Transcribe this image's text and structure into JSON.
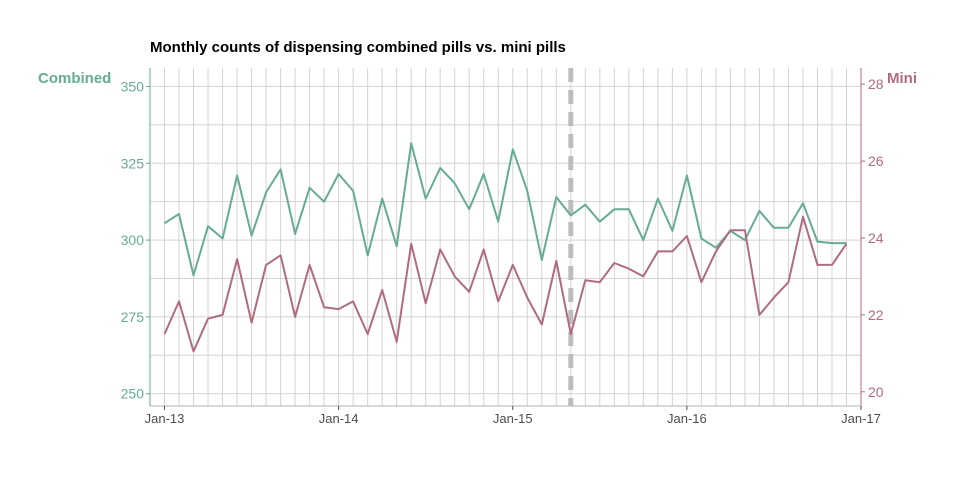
{
  "chart_data": {
    "type": "line",
    "title": "Monthly counts of dispensing combined pills vs. mini pills",
    "left_axis_label": "Combined",
    "right_axis_label": "Mini",
    "x_tick_labels": [
      "Jan-13",
      "Jan-14",
      "Jan-15",
      "Jan-16",
      "Jan-17"
    ],
    "x_range": [
      "2012-12",
      "2017-01"
    ],
    "left_ylim": [
      246,
      356
    ],
    "left_ticks": [
      "250",
      "275",
      "300",
      "325",
      "350"
    ],
    "right_ylim": [
      19.63,
      28.42
    ],
    "right_ticks": [
      "20",
      "22",
      "24",
      "26",
      "28"
    ],
    "grid": true,
    "reference_line": {
      "x": "2015-05",
      "style": "dashed"
    },
    "months": [
      "2013-01",
      "2013-02",
      "2013-03",
      "2013-04",
      "2013-05",
      "2013-06",
      "2013-07",
      "2013-08",
      "2013-09",
      "2013-10",
      "2013-11",
      "2013-12",
      "2014-01",
      "2014-02",
      "2014-03",
      "2014-04",
      "2014-05",
      "2014-06",
      "2014-07",
      "2014-08",
      "2014-09",
      "2014-10",
      "2014-11",
      "2014-12",
      "2015-01",
      "2015-02",
      "2015-03",
      "2015-04",
      "2015-05",
      "2015-06",
      "2015-07",
      "2015-08",
      "2015-09",
      "2015-10",
      "2015-11",
      "2015-12",
      "2016-01",
      "2016-02",
      "2016-03",
      "2016-04",
      "2016-05",
      "2016-06",
      "2016-07",
      "2016-08",
      "2016-09",
      "2016-10",
      "2016-11",
      "2016-12"
    ],
    "series": [
      {
        "name": "Combined",
        "axis": "left",
        "color": "#66ab96",
        "values": [
          305.5,
          308.5,
          288.5,
          304.5,
          300.5,
          321,
          301.5,
          315.5,
          323,
          302,
          317,
          312.5,
          321.5,
          316,
          295,
          313.5,
          298,
          331.5,
          313.5,
          323.5,
          318.5,
          310,
          321.5,
          306,
          329.5,
          316,
          293.5,
          314,
          308,
          311.5,
          306,
          310,
          310,
          300,
          313.5,
          303,
          321,
          300.5,
          297.5,
          303,
          300,
          309.5,
          304,
          304,
          312,
          299.5,
          299,
          299
        ]
      },
      {
        "name": "Mini",
        "axis": "right",
        "color": "#b06c7f",
        "values": [
          21.5,
          22.35,
          21.05,
          21.9,
          22.0,
          23.45,
          21.8,
          23.3,
          23.55,
          21.95,
          23.3,
          22.2,
          22.15,
          22.35,
          21.5,
          22.65,
          21.3,
          23.85,
          22.3,
          23.7,
          23.0,
          22.6,
          23.7,
          22.35,
          23.3,
          22.45,
          21.75,
          23.4,
          21.5,
          22.9,
          22.85,
          23.35,
          23.2,
          23.0,
          23.65,
          23.65,
          24.05,
          22.85,
          23.65,
          24.2,
          24.2,
          22.0,
          22.45,
          22.85,
          24.55,
          23.3,
          23.3,
          23.85
        ]
      }
    ]
  }
}
